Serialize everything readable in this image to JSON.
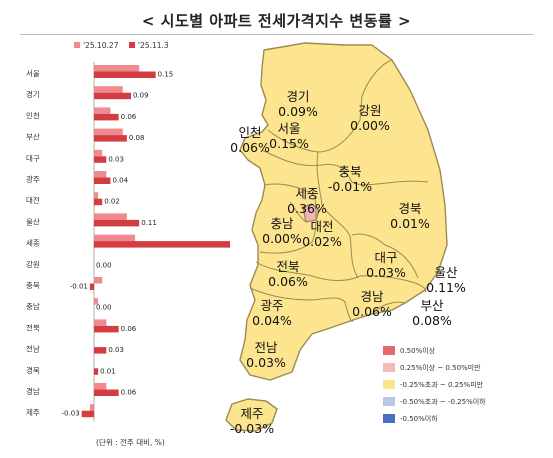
{
  "title": "< 시도별 아파트 전세가격지수 변동률 >",
  "unit_note": "(단위 : 전주 대비, %)",
  "colors": {
    "prev": "#ef8a8e",
    "curr": "#d43c42",
    "map_fill": "#fde58f",
    "map_stroke": "#9c8b4f",
    "sejong_fill": "#f1b4b7"
  },
  "chart_data": {
    "type": "bar",
    "orientation": "horizontal",
    "categories": [
      "서울",
      "경기",
      "인천",
      "부산",
      "대구",
      "광주",
      "대전",
      "울산",
      "세종",
      "강원",
      "충북",
      "충남",
      "전북",
      "전남",
      "경북",
      "경남",
      "제주"
    ],
    "series": [
      {
        "name": "'25.10.27",
        "values": [
          0.11,
          0.07,
          0.04,
          0.07,
          0.02,
          0.03,
          0.01,
          0.08,
          0.1,
          0.0,
          0.02,
          0.01,
          0.03,
          0.0,
          0.0,
          0.03,
          -0.01
        ]
      },
      {
        "name": "'25.11.3",
        "values": [
          0.15,
          0.09,
          0.06,
          0.08,
          0.03,
          0.04,
          0.02,
          0.11,
          0.36,
          0.0,
          -0.01,
          0.0,
          0.06,
          0.03,
          0.01,
          0.06,
          -0.03
        ]
      }
    ],
    "data_labels": [
      "0.15",
      "0.09",
      "0.06",
      "0.08",
      "0.03",
      "0.04",
      "0.02",
      "0.11",
      "0.36",
      "0.00",
      "-0.01",
      "0.00",
      "0.06",
      "0.03",
      "0.01",
      "0.06",
      "-0.03"
    ],
    "legend_position": "top-left",
    "grid": false
  },
  "map": {
    "labels": [
      {
        "region": "경기",
        "value": "0.09%"
      },
      {
        "region": "강원",
        "value": "0.00%"
      },
      {
        "region": "인천",
        "value": "0.06%"
      },
      {
        "region": "서울",
        "value": "0.15%"
      },
      {
        "region": "충북",
        "value": "-0.01%"
      },
      {
        "region": "세종",
        "value": "0.36%"
      },
      {
        "region": "충남",
        "value": "0.00%"
      },
      {
        "region": "대전",
        "value": "0.02%"
      },
      {
        "region": "경북",
        "value": "0.01%"
      },
      {
        "region": "전북",
        "value": "0.06%"
      },
      {
        "region": "대구",
        "value": "0.03%"
      },
      {
        "region": "울산",
        "value": "0.11%"
      },
      {
        "region": "광주",
        "value": "0.04%"
      },
      {
        "region": "경남",
        "value": "0.06%"
      },
      {
        "region": "부산",
        "value": "0.08%"
      },
      {
        "region": "전남",
        "value": "0.03%"
      },
      {
        "region": "제주",
        "value": "-0.03%"
      }
    ]
  },
  "legend": [
    {
      "label": "0.50%이상",
      "color": "#e46a6f"
    },
    {
      "label": "0.25%이상 ~ 0.50%미만",
      "color": "#f3b9bb"
    },
    {
      "label": "-0.25%초과 ~ 0.25%미만",
      "color": "#fde58f"
    },
    {
      "label": "-0.50%초과 ~ -0.25%이하",
      "color": "#b9c7e6"
    },
    {
      "label": "-0.50%이하",
      "color": "#4a6fc0"
    }
  ]
}
